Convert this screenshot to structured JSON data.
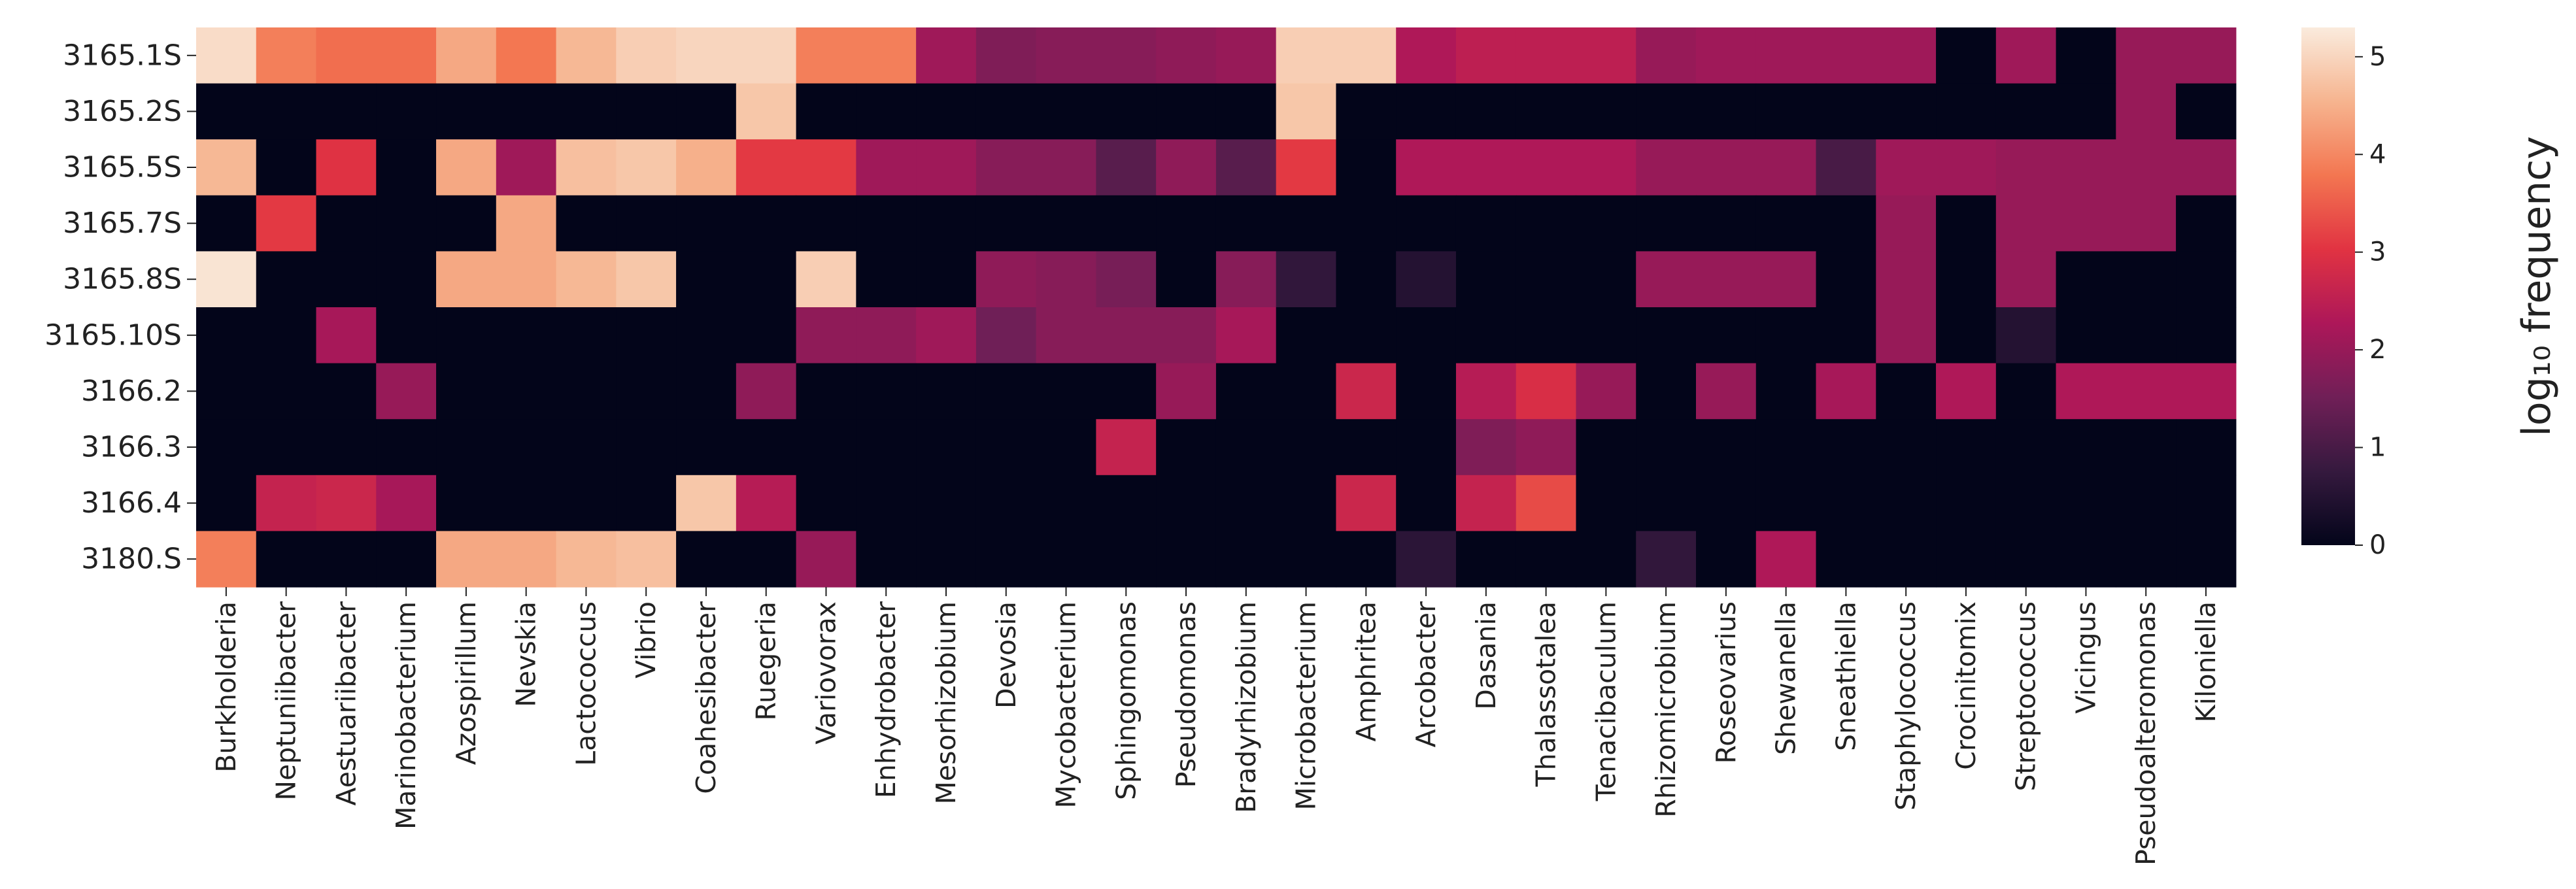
{
  "chart_data": {
    "type": "heatmap",
    "rows": [
      "3165.1S",
      "3165.2S",
      "3165.5S",
      "3165.7S",
      "3165.8S",
      "3165.10S",
      "3166.2",
      "3166.3",
      "3166.4",
      "3180.S"
    ],
    "columns": [
      "Burkholderia",
      "Neptuniibacter",
      "Aestuariibacter",
      "Marinobacterium",
      "Azospirillum",
      "Nevskia",
      "Lactococcus",
      "Vibrio",
      "Coahesibacter",
      "Ruegeria",
      "Variovorax",
      "Enhydrobacter",
      "Mesorhizobium",
      "Devosia",
      "Mycobacterium",
      "Sphingomonas",
      "Pseudomonas",
      "Bradyrhizobium",
      "Microbacterium",
      "Amphritea",
      "Arcobacter",
      "Dasania",
      "Thalassotalea",
      "Tenacibaculum",
      "Rhizomicrobium",
      "Roseovarius",
      "Shewanella",
      "Sneathiella",
      "Staphylococcus",
      "Crocinitomix",
      "Streptococcus",
      "Vicingus",
      "Pseudoalteromonas",
      "Kiloniella"
    ],
    "values": [
      [
        5.1,
        3.9,
        3.7,
        3.7,
        4.4,
        3.8,
        4.6,
        4.9,
        5.0,
        5.0,
        3.9,
        3.9,
        2.1,
        1.7,
        1.8,
        1.8,
        1.9,
        2.0,
        4.9,
        4.9,
        2.3,
        2.5,
        2.5,
        2.5,
        2.0,
        2.1,
        2.1,
        2.1,
        2.1,
        0.0,
        2.1,
        0.0,
        2.0,
        2.0
      ],
      [
        0.0,
        0.0,
        0.0,
        0.0,
        0.0,
        0.0,
        0.0,
        0.0,
        0.0,
        4.8,
        0.0,
        0.0,
        0.0,
        0.0,
        0.0,
        0.0,
        0.0,
        0.0,
        4.8,
        0.0,
        0.0,
        0.0,
        0.0,
        0.0,
        0.0,
        0.0,
        0.0,
        0.0,
        0.0,
        0.0,
        0.0,
        0.0,
        2.0,
        0.0
      ],
      [
        4.6,
        0.0,
        3.0,
        0.0,
        4.4,
        2.1,
        4.7,
        4.8,
        4.5,
        3.1,
        3.1,
        2.1,
        2.1,
        1.8,
        1.8,
        1.2,
        1.9,
        1.2,
        3.1,
        0.0,
        2.3,
        2.3,
        2.3,
        2.3,
        2.0,
        2.0,
        2.0,
        1.0,
        2.1,
        2.1,
        2.0,
        2.0,
        2.0,
        2.0
      ],
      [
        0.0,
        3.1,
        0.0,
        0.0,
        0.0,
        4.4,
        0.0,
        0.0,
        0.0,
        0.0,
        0.0,
        0.0,
        0.0,
        0.0,
        0.0,
        0.0,
        0.0,
        0.0,
        0.0,
        0.0,
        0.0,
        0.0,
        0.0,
        0.0,
        0.0,
        0.0,
        0.0,
        0.0,
        2.0,
        0.0,
        2.0,
        2.0,
        2.0,
        0.0
      ],
      [
        5.2,
        0.0,
        0.0,
        0.0,
        4.4,
        4.4,
        4.6,
        4.8,
        0.0,
        0.0,
        4.9,
        0.0,
        0.0,
        1.9,
        1.8,
        1.6,
        0.0,
        1.8,
        0.7,
        0.0,
        0.5,
        0.0,
        0.0,
        0.0,
        2.0,
        2.0,
        2.0,
        0.0,
        2.0,
        0.0,
        2.0,
        0.0,
        0.0,
        0.0
      ],
      [
        0.0,
        0.0,
        2.2,
        0.0,
        0.0,
        0.0,
        0.0,
        0.0,
        0.0,
        0.0,
        1.9,
        1.9,
        2.1,
        1.5,
        1.8,
        1.8,
        1.8,
        2.2,
        0.0,
        0.0,
        0.0,
        0.0,
        0.0,
        0.0,
        0.0,
        0.0,
        0.0,
        0.0,
        2.0,
        0.0,
        0.5,
        0.0,
        0.0,
        0.0
      ],
      [
        0.0,
        0.0,
        0.0,
        2.0,
        0.0,
        0.0,
        0.0,
        0.0,
        0.0,
        1.9,
        0.0,
        0.0,
        0.0,
        0.0,
        0.0,
        0.0,
        2.0,
        0.0,
        0.0,
        2.7,
        0.0,
        2.4,
        2.9,
        2.0,
        0.0,
        2.0,
        0.0,
        2.2,
        0.0,
        2.3,
        0.0,
        2.3,
        2.3,
        2.3
      ],
      [
        0.0,
        0.0,
        0.0,
        0.0,
        0.0,
        0.0,
        0.0,
        0.0,
        0.0,
        0.0,
        0.0,
        0.0,
        0.0,
        0.0,
        0.0,
        2.6,
        0.0,
        0.0,
        0.0,
        0.0,
        0.0,
        1.7,
        1.9,
        0.0,
        0.0,
        0.0,
        0.0,
        0.0,
        0.0,
        0.0,
        0.0,
        0.0,
        0.0,
        0.0
      ],
      [
        0.0,
        2.6,
        2.7,
        2.2,
        0.0,
        0.0,
        0.0,
        0.0,
        4.8,
        2.4,
        0.0,
        0.0,
        0.0,
        0.0,
        0.0,
        0.0,
        0.0,
        0.0,
        0.0,
        2.7,
        0.0,
        2.6,
        3.3,
        0.0,
        0.0,
        0.0,
        0.0,
        0.0,
        0.0,
        0.0,
        0.0,
        0.0,
        0.0,
        0.0
      ],
      [
        3.9,
        0.0,
        0.0,
        0.0,
        4.4,
        4.4,
        4.6,
        4.7,
        0.0,
        0.0,
        2.0,
        0.0,
        0.0,
        0.0,
        0.0,
        0.0,
        0.0,
        0.0,
        0.0,
        0.0,
        0.6,
        0.0,
        0.0,
        0.0,
        0.7,
        0.0,
        2.3,
        0.0,
        0.0,
        0.0,
        0.0,
        0.0,
        0.0,
        0.0
      ]
    ],
    "colorbar": {
      "label": "log₁₀  frequency",
      "ticks": [
        0,
        1,
        2,
        3,
        4,
        5
      ],
      "range": [
        0,
        5.3
      ],
      "colormap": "rocket"
    }
  },
  "colors": {
    "background": "#ffffff",
    "text": "#222222",
    "rocket_stops": [
      "#03051a",
      "#35193e",
      "#701f57",
      "#ad1759",
      "#e13342",
      "#f37651",
      "#f6b48f",
      "#faebdd"
    ]
  }
}
